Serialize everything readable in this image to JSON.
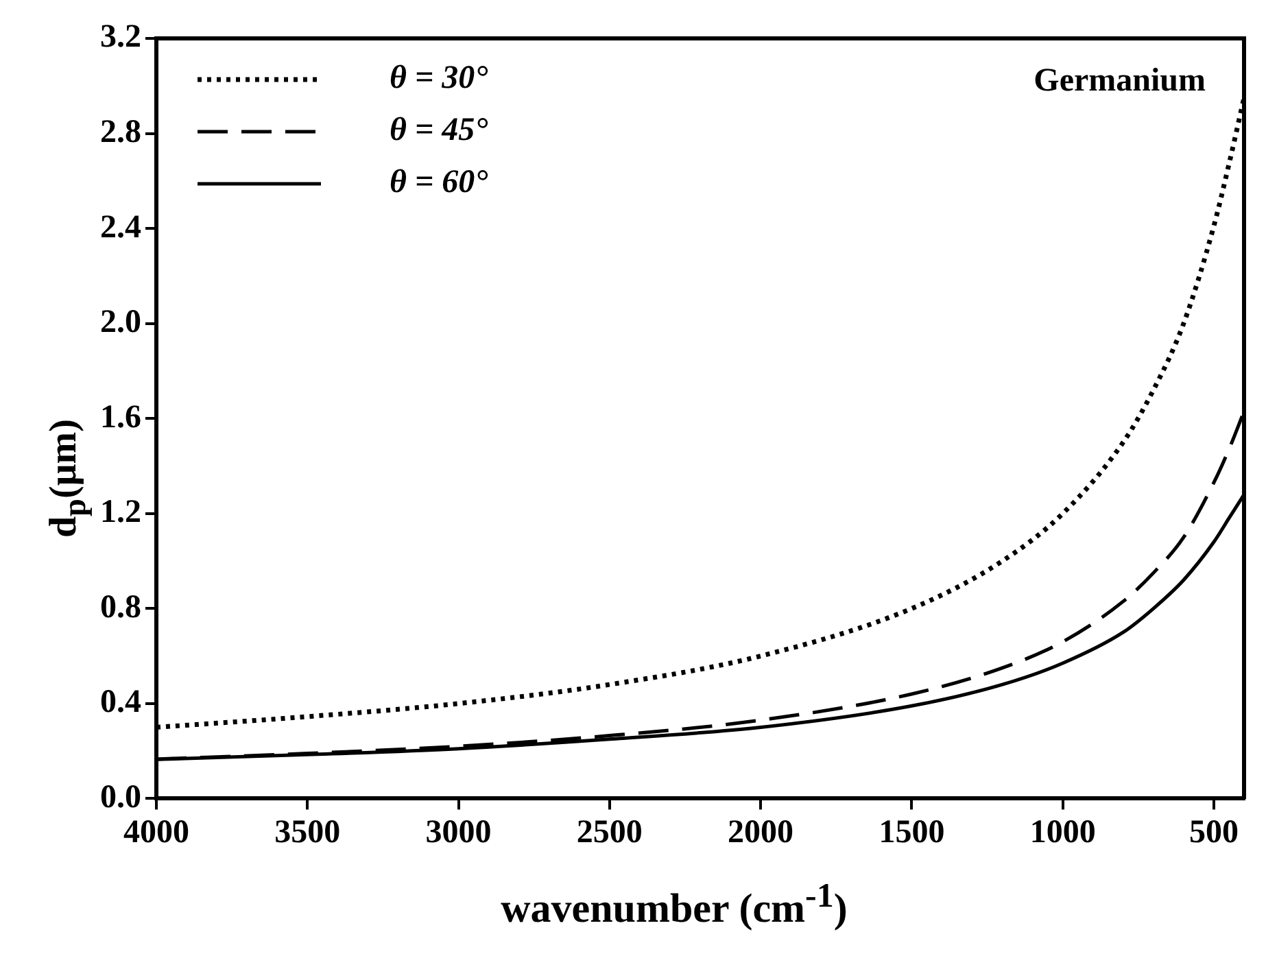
{
  "chart_data": {
    "type": "line",
    "xlabel": "wavenumber (cm$^{-1}$)",
    "ylabel": "d$_{p}$(μm)",
    "annotations": [
      "Germanium"
    ],
    "x": [
      4000,
      3500,
      3000,
      2500,
      2000,
      1500,
      1200,
      1000,
      800,
      700,
      600,
      500,
      450,
      400
    ],
    "series": [
      {
        "name": "θ = 30°",
        "color": "#000000",
        "line_style": "dotted",
        "values": [
          0.3,
          0.345,
          0.4,
          0.48,
          0.6,
          0.8,
          1.0,
          1.2,
          1.5,
          1.72,
          2.0,
          2.41,
          2.67,
          2.95
        ]
      },
      {
        "name": "θ = 45°",
        "color": "#000000",
        "line_style": "dashed",
        "values": [
          0.166,
          0.19,
          0.22,
          0.265,
          0.33,
          0.44,
          0.55,
          0.66,
          0.83,
          0.95,
          1.1,
          1.33,
          1.47,
          1.63
        ]
      },
      {
        "name": "θ = 60°",
        "color": "#000000",
        "line_style": "solid",
        "values": [
          0.165,
          0.185,
          0.21,
          0.25,
          0.3,
          0.39,
          0.48,
          0.57,
          0.7,
          0.8,
          0.92,
          1.08,
          1.18,
          1.28
        ]
      }
    ],
    "xlim": [
      4000,
      400
    ],
    "xticks": [
      4000,
      3500,
      3000,
      2500,
      2000,
      1500,
      1000,
      500
    ],
    "ylim": [
      0,
      3.2
    ],
    "yticks": [
      {
        "value": 0,
        "label": "0.0"
      },
      0.4,
      0.8,
      1.2,
      1.6,
      {
        "value": 2.0,
        "label": "2.0"
      },
      2.4,
      2.8,
      3.2
    ],
    "grid": false,
    "legend": "top left",
    "marker": "none"
  }
}
